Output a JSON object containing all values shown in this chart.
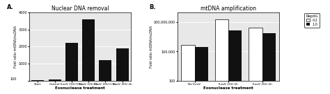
{
  "panel_A": {
    "title": "Nuclear DNA removal",
    "xlabel": "Exonuclease treatment",
    "ylabel": "Fold ratio mtDNA/nuDNA",
    "categories": [
      "Start",
      "Control",
      "ExoV 10U 0.5h",
      "ExoV 10U 2h",
      "ExoV 20U 0.5h",
      "ExoV 20U 2h"
    ],
    "values": [
      20,
      70,
      2200,
      3600,
      1200,
      1900
    ],
    "bar_color": "#111111",
    "ylim": [
      0,
      4000
    ],
    "yticks": [
      0,
      1000,
      2000,
      3000,
      4000
    ],
    "ytick_labels": [
      "",
      "1000",
      "2000",
      "3000",
      "4000"
    ],
    "y_minor_label": "100",
    "label_A": "A."
  },
  "panel_B": {
    "title": "mtDNA amplification",
    "xlabel": "Exonuclease treatment",
    "ylabel": "Fold ratio mtDNA/nuDNA",
    "categories": [
      "No ExoV",
      "ExoV 10U 2h",
      "ExoV 20U 2h"
    ],
    "values_white": [
      500000,
      200000000,
      30000000
    ],
    "values_black": [
      270000,
      15000000,
      8000000
    ],
    "bar_color_white": "#ffffff",
    "bar_color_black": "#111111",
    "ylim_log": [
      100,
      1000000000
    ],
    "yticks": [
      100,
      100000,
      100000000
    ],
    "ytick_labels": [
      "100",
      "100,000",
      "100,000,000"
    ],
    "legend_title": "RepliG",
    "legend_labels": [
      "0.2",
      "1.0"
    ],
    "label_B": "B."
  },
  "plot_bg": "#e8e8e8",
  "fig_bg": "#ffffff",
  "fig_width": 4.74,
  "fig_height": 1.36
}
